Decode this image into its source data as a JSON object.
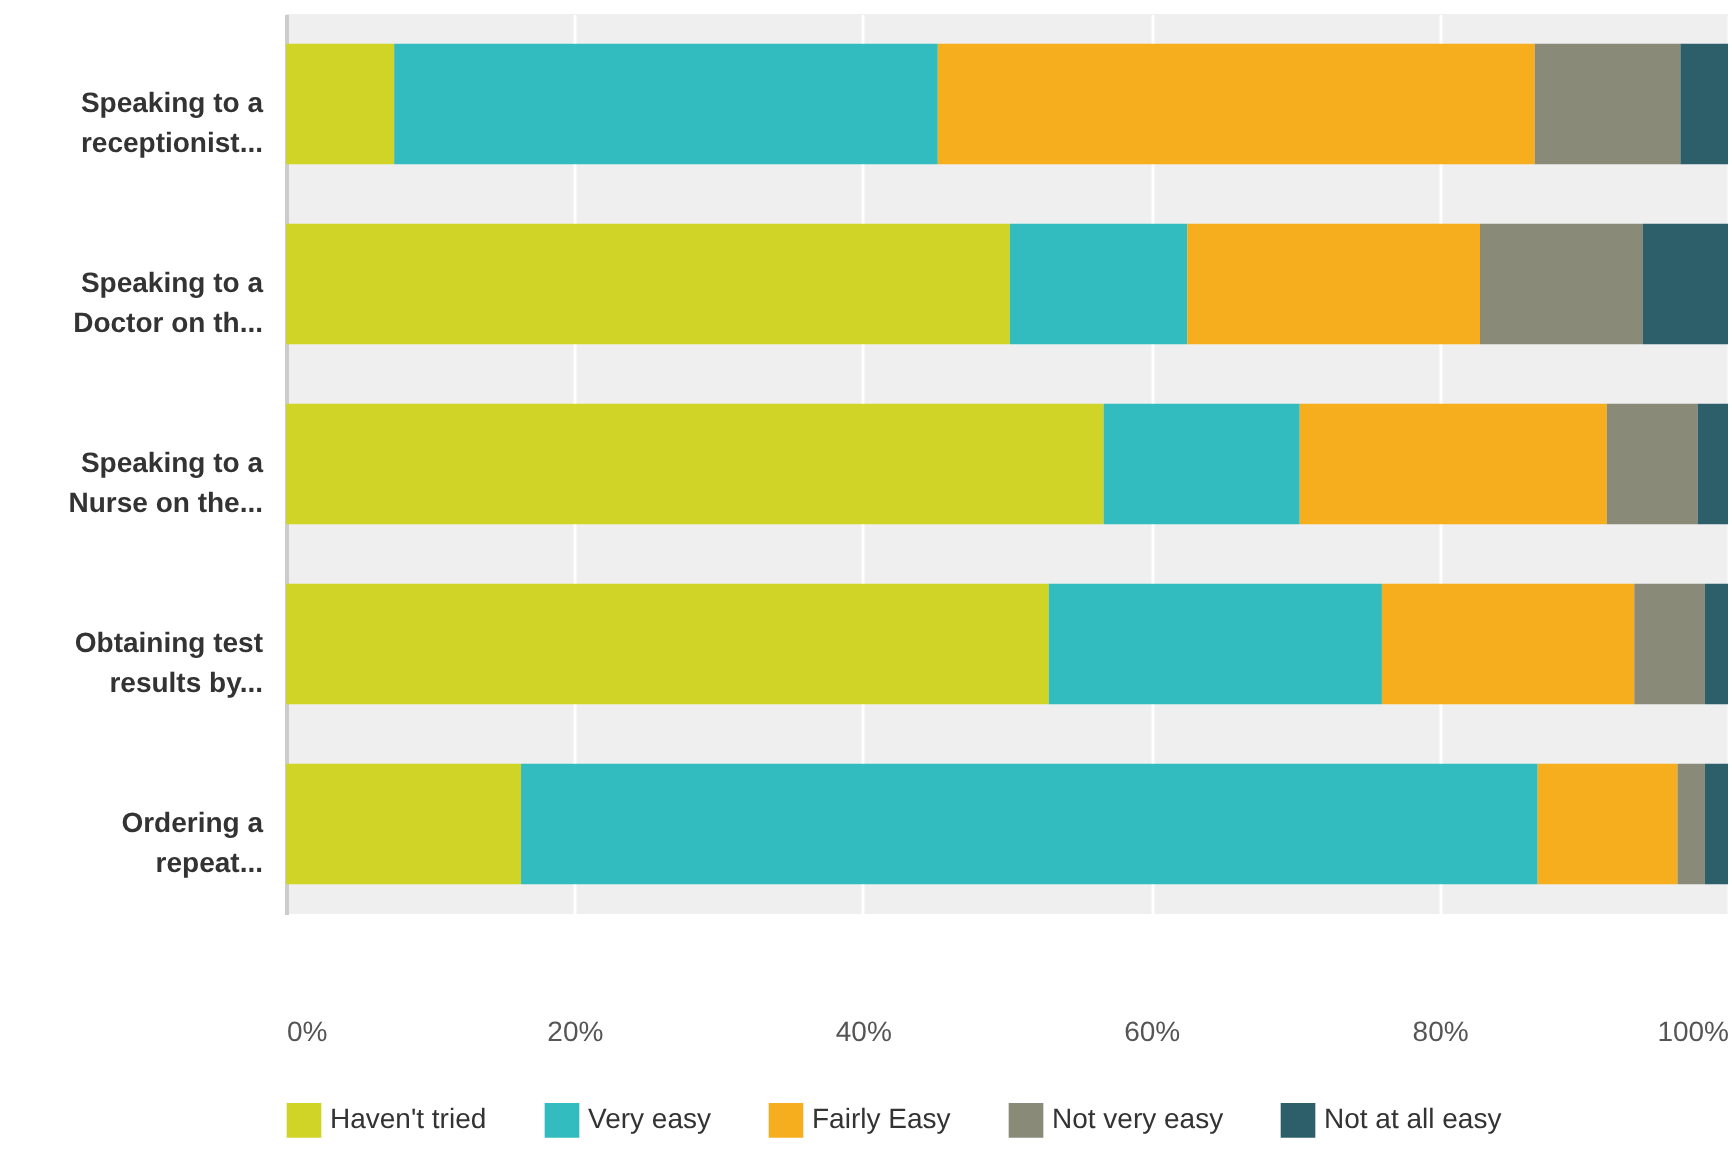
{
  "chart_data": {
    "type": "bar",
    "orientation": "horizontal",
    "stacked": true,
    "categories": [
      "Speaking to a\nreceptionist...",
      "Speaking to a\nDoctor on th...",
      "Speaking to a\nNurse on the...",
      "Obtaining test\nresults by...",
      "Ordering a\nrepeat..."
    ],
    "series": [
      {
        "name": "Haven't tried",
        "color": "#cfd427",
        "values": [
          7.5,
          50.2,
          56.7,
          52.9,
          16.3
        ]
      },
      {
        "name": "Very easy",
        "color": "#33bcbf",
        "values": [
          37.7,
          12.3,
          13.6,
          23.1,
          70.5
        ]
      },
      {
        "name": "Fairly Easy",
        "color": "#f6ae1f",
        "values": [
          41.4,
          20.3,
          21.3,
          17.5,
          9.7
        ]
      },
      {
        "name": "Not very easy",
        "color": "#8a8a78",
        "values": [
          10.1,
          11.3,
          6.3,
          4.9,
          1.9
        ]
      },
      {
        "name": "Not at all easy",
        "color": "#2d5f6b",
        "values": [
          3.3,
          5.9,
          2.1,
          1.6,
          1.6
        ]
      }
    ],
    "xlim": [
      0,
      100
    ],
    "xticks": [
      {
        "value": 0,
        "label": "0%"
      },
      {
        "value": 20,
        "label": "20%"
      },
      {
        "value": 40,
        "label": "40%"
      },
      {
        "value": 60,
        "label": "60%"
      },
      {
        "value": 80,
        "label": "80%"
      },
      {
        "value": 100,
        "label": "100%"
      }
    ],
    "grid": "x",
    "legend": "bottom"
  }
}
